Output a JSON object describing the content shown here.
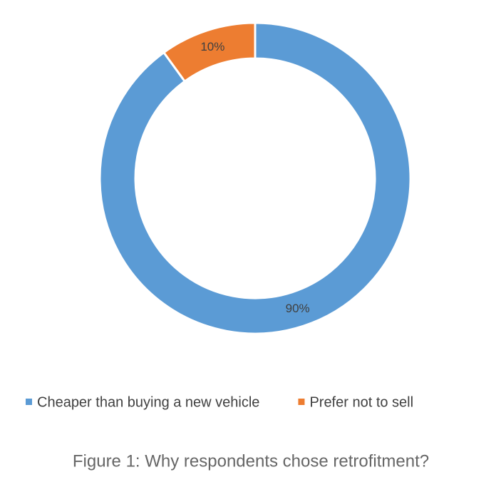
{
  "chart_data": {
    "type": "donut",
    "categories": [
      "Cheaper than buying a new vehicle",
      "Prefer not to sell"
    ],
    "values": [
      90,
      10
    ],
    "value_labels": [
      "90%",
      "10%"
    ],
    "colors": [
      "#5b9bd5",
      "#ed7d31"
    ],
    "legend": "bottom",
    "caption": "Figure 1: Why respondents chose retrofitment?"
  }
}
